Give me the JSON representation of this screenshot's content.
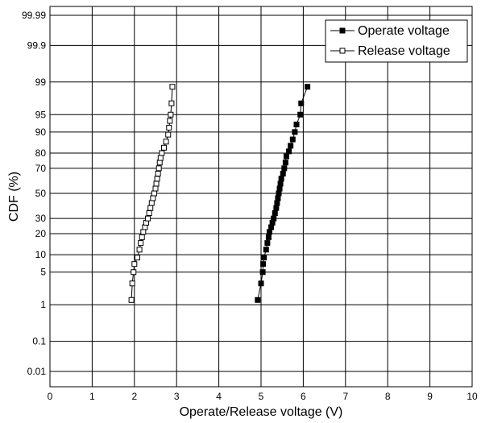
{
  "chart_data": {
    "type": "scatter",
    "title": "",
    "xlabel": "Operate/Release voltage  (V)",
    "ylabel": "CDF  (%)",
    "xlim": [
      0,
      10
    ],
    "xticks": [
      0,
      1,
      2,
      3,
      4,
      5,
      6,
      7,
      8,
      9,
      10
    ],
    "yscale": "normal-probability",
    "yticks": [
      {
        "value": 0.01,
        "label": "0.01"
      },
      {
        "value": 0.1,
        "label": "0.1"
      },
      {
        "value": 1,
        "label": "1"
      },
      {
        "value": 5,
        "label": "5"
      },
      {
        "value": 10,
        "label": "10"
      },
      {
        "value": 20,
        "label": "20"
      },
      {
        "value": 30,
        "label": "30"
      },
      {
        "value": 50,
        "label": "50"
      },
      {
        "value": 70,
        "label": "70"
      },
      {
        "value": 80,
        "label": "80"
      },
      {
        "value": 90,
        "label": "90"
      },
      {
        "value": 95,
        "label": "95"
      },
      {
        "value": 99,
        "label": "99"
      },
      {
        "value": 99.9,
        "label": "99.9"
      },
      {
        "value": 99.99,
        "label": "99.99"
      }
    ],
    "grid": true,
    "legend_position": "top-right",
    "series": [
      {
        "name": "Operate voltage",
        "marker": "filled-square",
        "color": "#000000",
        "points": [
          [
            4.92,
            1.3
          ],
          [
            5.0,
            3.0
          ],
          [
            5.04,
            5.0
          ],
          [
            5.05,
            7.0
          ],
          [
            5.07,
            9.0
          ],
          [
            5.12,
            12.0
          ],
          [
            5.15,
            15.0
          ],
          [
            5.18,
            18.0
          ],
          [
            5.2,
            21.0
          ],
          [
            5.24,
            24.0
          ],
          [
            5.27,
            27.0
          ],
          [
            5.3,
            30.0
          ],
          [
            5.33,
            34.0
          ],
          [
            5.36,
            38.0
          ],
          [
            5.38,
            42.0
          ],
          [
            5.4,
            46.0
          ],
          [
            5.42,
            50.0
          ],
          [
            5.44,
            54.0
          ],
          [
            5.46,
            58.0
          ],
          [
            5.48,
            62.0
          ],
          [
            5.52,
            66.0
          ],
          [
            5.55,
            70.0
          ],
          [
            5.58,
            74.0
          ],
          [
            5.6,
            78.0
          ],
          [
            5.66,
            81.0
          ],
          [
            5.7,
            84.0
          ],
          [
            5.75,
            87.0
          ],
          [
            5.8,
            90.0
          ],
          [
            5.84,
            92.5
          ],
          [
            5.93,
            95.0
          ],
          [
            5.95,
            97.0
          ],
          [
            6.1,
            98.7
          ]
        ]
      },
      {
        "name": "Release voltage",
        "marker": "open-square",
        "color": "#000000",
        "points": [
          [
            1.93,
            1.3
          ],
          [
            1.95,
            3.0
          ],
          [
            1.98,
            5.0
          ],
          [
            2.0,
            7.0
          ],
          [
            2.07,
            9.0
          ],
          [
            2.12,
            12.0
          ],
          [
            2.15,
            15.0
          ],
          [
            2.18,
            18.0
          ],
          [
            2.21,
            21.0
          ],
          [
            2.25,
            24.0
          ],
          [
            2.28,
            27.0
          ],
          [
            2.32,
            30.0
          ],
          [
            2.35,
            34.0
          ],
          [
            2.38,
            38.0
          ],
          [
            2.41,
            42.0
          ],
          [
            2.44,
            46.0
          ],
          [
            2.47,
            50.0
          ],
          [
            2.5,
            54.0
          ],
          [
            2.52,
            58.0
          ],
          [
            2.54,
            62.0
          ],
          [
            2.56,
            66.0
          ],
          [
            2.58,
            70.0
          ],
          [
            2.6,
            74.0
          ],
          [
            2.62,
            77.0
          ],
          [
            2.65,
            80.0
          ],
          [
            2.7,
            83.0
          ],
          [
            2.75,
            86.0
          ],
          [
            2.8,
            89.0
          ],
          [
            2.82,
            91.5
          ],
          [
            2.84,
            93.5
          ],
          [
            2.86,
            95.0
          ],
          [
            2.88,
            97.0
          ],
          [
            2.9,
            98.7
          ]
        ]
      }
    ]
  }
}
